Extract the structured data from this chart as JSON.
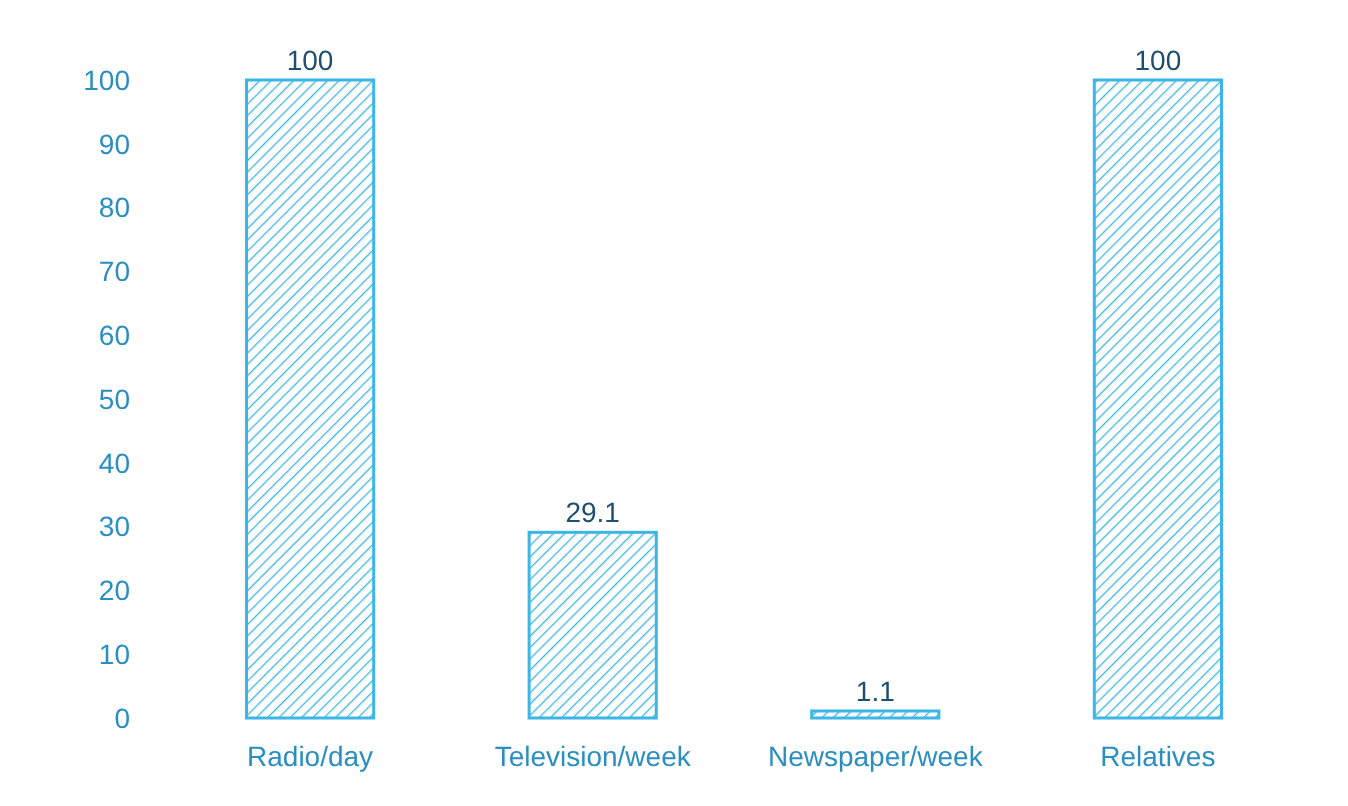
{
  "chart_data": {
    "type": "bar",
    "categories": [
      "Radio/day",
      "Television/week",
      "Newspaper/week",
      "Relatives"
    ],
    "values": [
      100,
      29.1,
      1.1,
      100
    ],
    "color": "#3cb6e6",
    "ylim": [
      0,
      100
    ],
    "yticks": [
      0,
      10,
      20,
      30,
      40,
      50,
      60,
      70,
      80,
      90,
      100
    ],
    "data_labels": true
  }
}
